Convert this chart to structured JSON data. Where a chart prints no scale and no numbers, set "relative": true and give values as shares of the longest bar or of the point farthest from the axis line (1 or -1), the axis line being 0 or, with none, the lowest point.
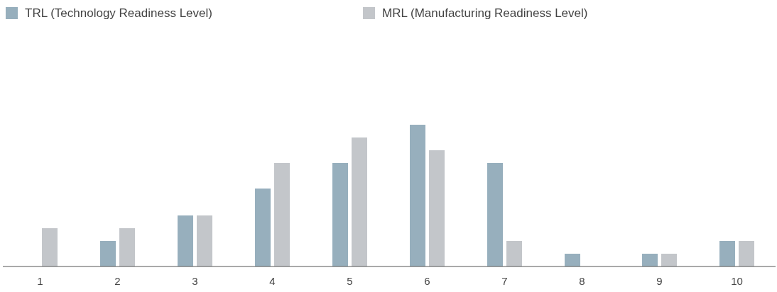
{
  "chart_data": {
    "type": "bar",
    "relative": true,
    "legend": "top left",
    "categories": [
      "1",
      "2",
      "3",
      "4",
      "5",
      "6",
      "7",
      "8",
      "9",
      "10"
    ],
    "series": [
      {
        "name": "TRL (Technology Readiness Level)",
        "color": "#97afbd",
        "values": [
          0,
          0.18,
          0.36,
          0.55,
          0.73,
          1,
          0.73,
          0.09,
          0.09,
          0.18
        ]
      },
      {
        "name": "MRL (Manufacturing Readiness Level)",
        "color": "#c3c6ca",
        "values": [
          0.27,
          0.27,
          0.36,
          0.73,
          0.91,
          0.82,
          0.18,
          0,
          0.09,
          0.18
        ]
      }
    ]
  }
}
